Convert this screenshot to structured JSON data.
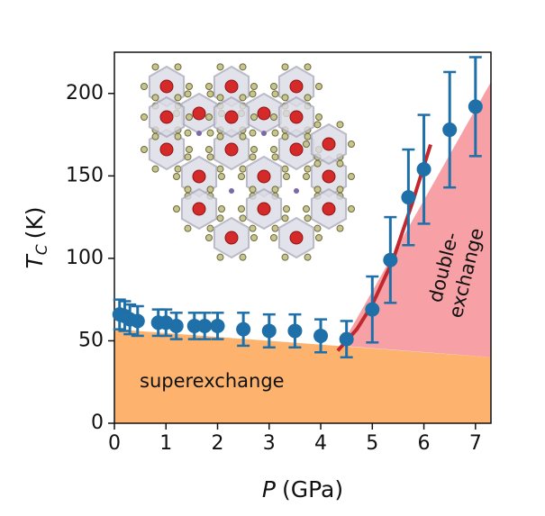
{
  "chart_data": {
    "type": "scatter",
    "xlabel": {
      "symbol": "P",
      "unit": "(GPa)"
    },
    "ylabel": {
      "symbol": "T",
      "subscript": "C",
      "unit": "(K)"
    },
    "xlim": [
      0,
      7.3
    ],
    "ylim": [
      0,
      225
    ],
    "xticks": [
      0,
      1,
      2,
      3,
      4,
      5,
      6,
      7
    ],
    "yticks": [
      0,
      50,
      100,
      150,
      200
    ],
    "series": [
      {
        "color": "#1f6fa8",
        "x": [
          0.1,
          0.2,
          0.3,
          0.45,
          0.85,
          1.0,
          1.2,
          1.55,
          1.75,
          2.0,
          2.5,
          3.0,
          3.5,
          4.0,
          4.5,
          5.0,
          5.35,
          5.7,
          6.0,
          6.5,
          7.0
        ],
        "values": [
          66,
          65,
          63,
          62,
          61,
          61,
          59,
          59,
          59,
          59,
          57,
          56,
          56,
          53,
          51,
          69,
          99,
          137,
          154,
          178,
          192
        ],
        "errors": [
          9,
          9,
          9,
          9,
          8,
          8,
          8,
          8,
          8,
          8,
          10,
          10,
          10,
          10,
          11,
          20,
          26,
          29,
          33,
          35,
          30
        ]
      }
    ],
    "fit": {
      "color": "#c0282d",
      "x": [
        4.33,
        4.7,
        5.0,
        5.4,
        5.78,
        6.13
      ],
      "values": [
        44,
        57,
        72,
        99,
        134,
        169
      ]
    },
    "regions": [
      {
        "label": [
          "superexchange"
        ],
        "color": "#fdb36e",
        "x": [
          0,
          7.3
        ],
        "y": [
          57,
          40
        ]
      },
      {
        "label": [
          "double-",
          "exchange"
        ],
        "color": "#f7a1a6",
        "x": [
          4.4,
          7.3,
          7.3
        ],
        "y": [
          47,
          207,
          40
        ]
      }
    ]
  }
}
